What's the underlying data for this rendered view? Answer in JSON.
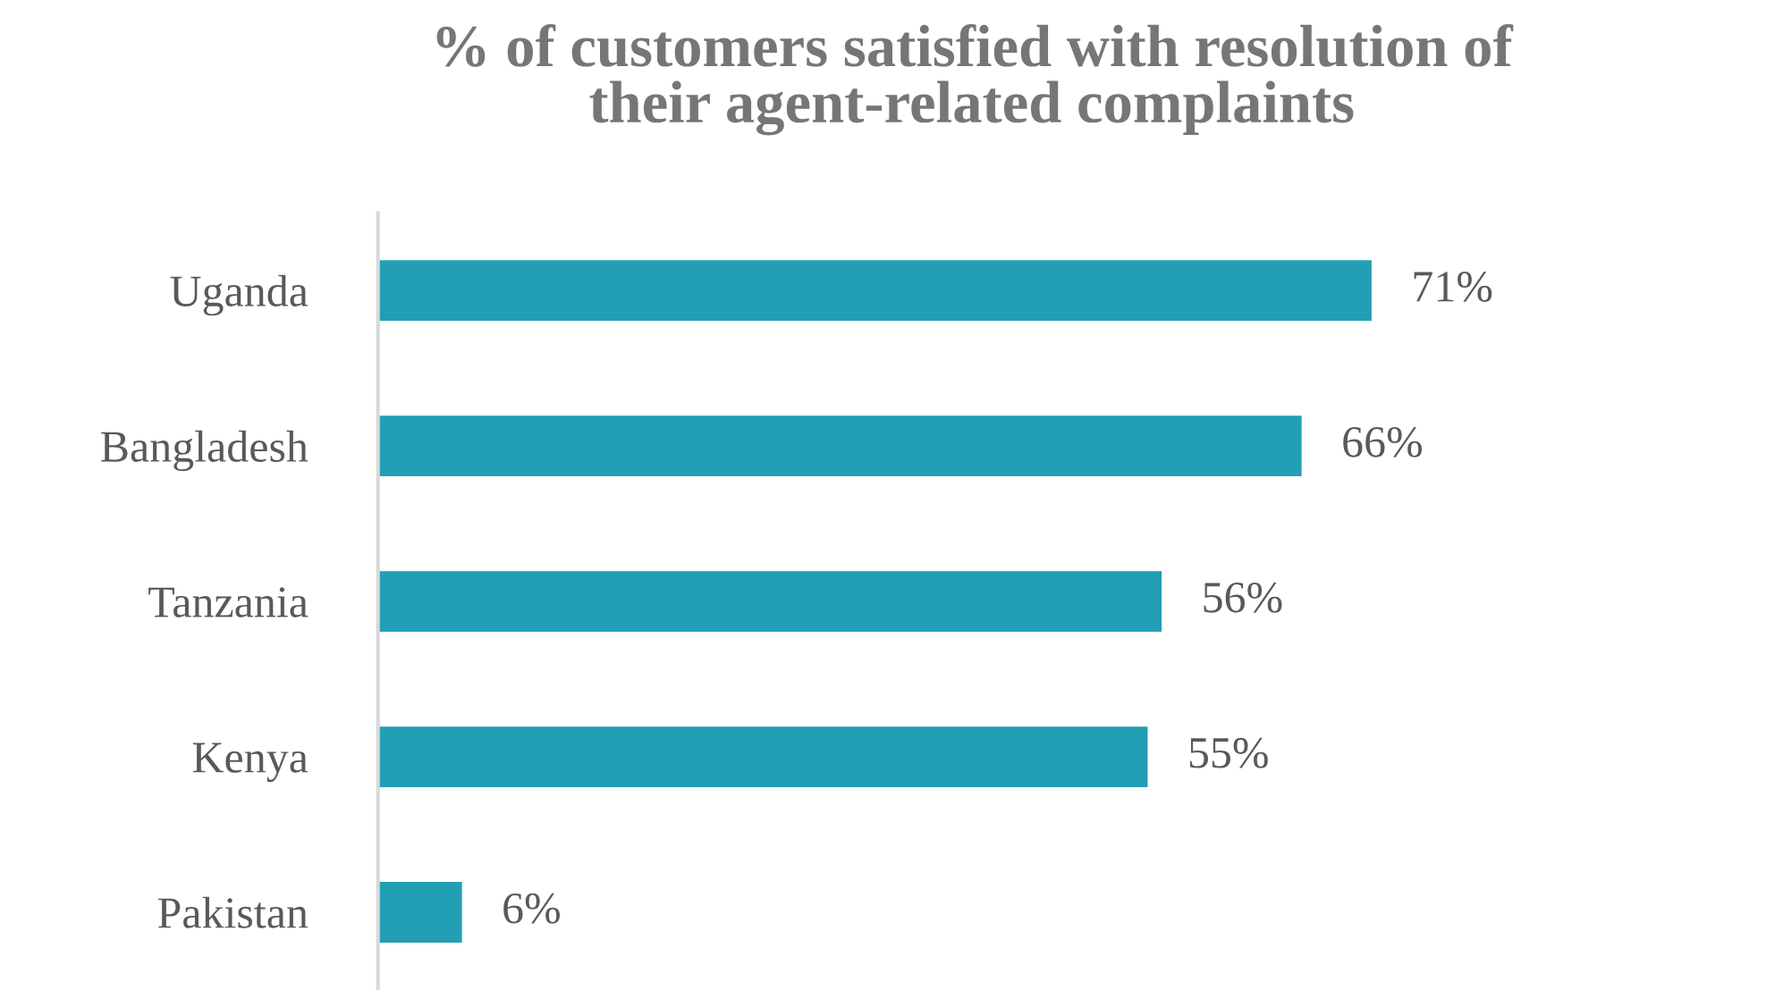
{
  "chart_data": {
    "type": "bar",
    "orientation": "horizontal",
    "title": "% of customers satisfied with resolution of\ntheir agent-related complaints",
    "categories": [
      "Uganda",
      "Bangladesh",
      "Tanzania",
      "Kenya",
      "Pakistan"
    ],
    "values": [
      71,
      66,
      56,
      55,
      6
    ],
    "value_labels": [
      "71%",
      "66%",
      "56%",
      "55%",
      "6%"
    ],
    "color": "#239fb5",
    "grid": false,
    "legend": false
  }
}
